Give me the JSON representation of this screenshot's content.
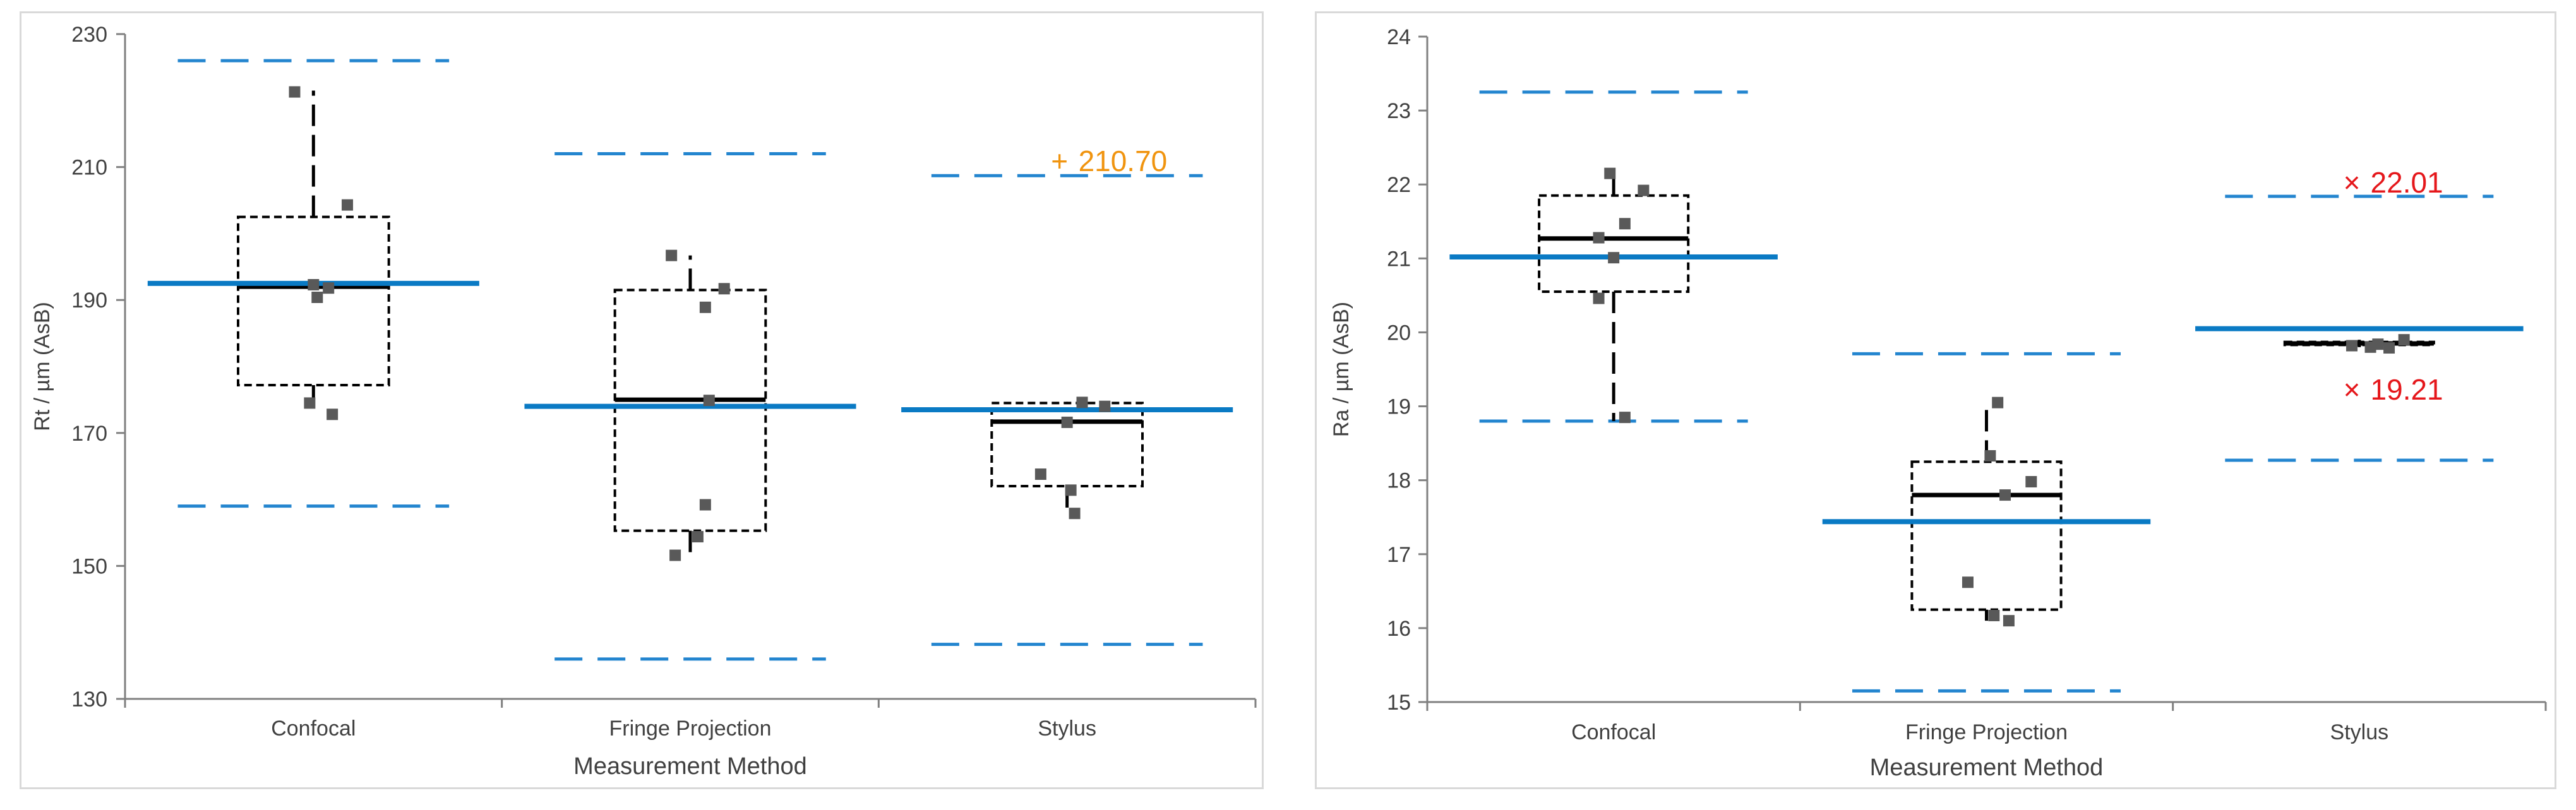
{
  "colors": {
    "mean_line": "#0a7ac4",
    "limit_line": "#2385cf",
    "box": "#000000",
    "point": "#595959",
    "axis": "#808080",
    "annotation_orange": "#f0940f",
    "annotation_red": "#e5171b"
  },
  "chart_data": [
    {
      "type": "box",
      "xlabel": "Measurement Method",
      "ylabel": "Rt / µm (AsB)",
      "ylim": [
        130,
        230
      ],
      "yticks": [
        130,
        150,
        170,
        190,
        210,
        230
      ],
      "categories": [
        "Confocal",
        "Fringe Projection",
        "Stylus"
      ],
      "groups": [
        {
          "name": "Confocal",
          "q1": 177.2,
          "median": 192.0,
          "q3": 202.5,
          "whisker_low": 173.0,
          "whisker_high": 221.5,
          "mean": 192.5,
          "limit_low": 159.0,
          "limit_high": 226.0,
          "points": [
            221.3,
            204.3,
            192.3,
            191.8,
            190.4,
            174.5,
            172.8
          ]
        },
        {
          "name": "Fringe Projection",
          "q1": 155.3,
          "median": 175.0,
          "q3": 191.5,
          "whisker_low": 151.5,
          "whisker_high": 196.7,
          "mean": 174.0,
          "limit_low": 136.0,
          "limit_high": 212.0,
          "points": [
            196.7,
            191.7,
            188.9,
            174.9,
            159.2,
            154.4,
            151.6
          ]
        },
        {
          "name": "Stylus",
          "q1": 162.0,
          "median": 171.7,
          "q3": 174.5,
          "whisker_low": 157.5,
          "whisker_high": 174.5,
          "mean": 173.5,
          "limit_low": 138.2,
          "limit_high": 208.7,
          "points": [
            174.6,
            174.0,
            171.6,
            163.8,
            161.4,
            157.9
          ]
        }
      ],
      "annotations": [
        {
          "group": "Stylus",
          "marker": "+",
          "label": "210.70",
          "value": 210.7,
          "color": "#f0940f"
        }
      ]
    },
    {
      "type": "box",
      "xlabel": "Measurement Method",
      "ylabel": "Ra / µm (AsB)",
      "ylim": [
        15,
        24
      ],
      "yticks": [
        15,
        16,
        17,
        18,
        19,
        20,
        21,
        22,
        23,
        24
      ],
      "categories": [
        "Confocal",
        "Fringe Projection",
        "Stylus"
      ],
      "groups": [
        {
          "name": "Confocal",
          "q1": 20.55,
          "median": 21.27,
          "q3": 21.85,
          "whisker_low": 18.8,
          "whisker_high": 22.15,
          "mean": 21.02,
          "limit_low": 18.8,
          "limit_high": 23.25,
          "points": [
            22.15,
            21.92,
            21.47,
            21.28,
            21.01,
            20.46,
            18.85
          ]
        },
        {
          "name": "Fringe Projection",
          "q1": 16.25,
          "median": 17.8,
          "q3": 18.25,
          "whisker_low": 16.1,
          "whisker_high": 19.05,
          "mean": 17.44,
          "limit_low": 15.15,
          "limit_high": 19.71,
          "points": [
            19.05,
            18.33,
            17.98,
            17.8,
            16.62,
            16.17,
            16.1
          ]
        },
        {
          "name": "Stylus",
          "q1": 19.83,
          "median": 19.85,
          "q3": 19.87,
          "whisker_low": 19.8,
          "whisker_high": 19.9,
          "mean": 20.05,
          "limit_low": 18.27,
          "limit_high": 21.84,
          "points": [
            19.9,
            19.84,
            19.82,
            19.8,
            19.79
          ]
        }
      ],
      "annotations": [
        {
          "group": "Stylus",
          "marker": "×",
          "label": "22.01",
          "value": 22.01,
          "color": "#e5171b"
        },
        {
          "group": "Stylus",
          "marker": "×",
          "label": "19.21",
          "value": 19.21,
          "color": "#e5171b"
        }
      ]
    }
  ]
}
